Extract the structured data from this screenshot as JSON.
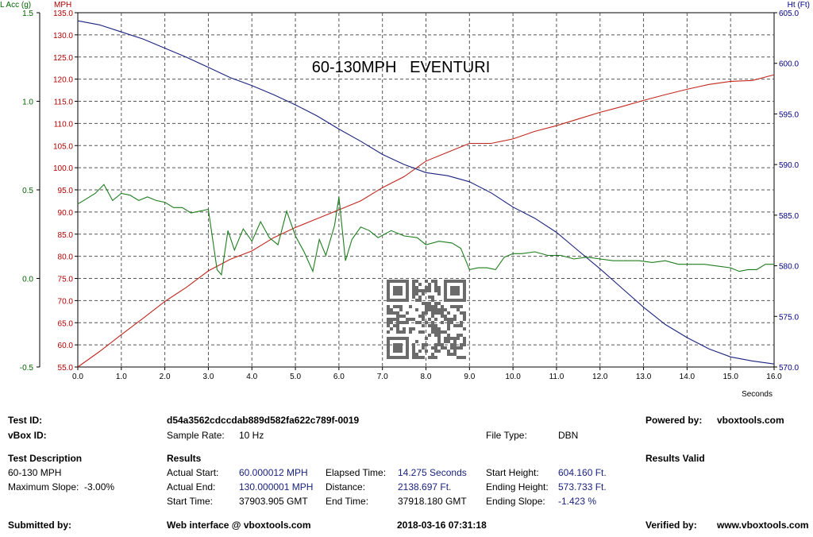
{
  "chart_data": {
    "type": "line",
    "title": "60-130MPH   EVENTURI",
    "xlabel": "Seconds",
    "xlim": [
      0,
      16
    ],
    "x_ticks": [
      "0.0",
      "1.0",
      "2.0",
      "3.0",
      "4.0",
      "5.0",
      "6.0",
      "7.0",
      "8.0",
      "9.0",
      "10.0",
      "11.0",
      "12.0",
      "13.0",
      "14.0",
      "15.0",
      "16.0"
    ],
    "grid": true,
    "axes": {
      "lacc": {
        "label": "L Acc (g)",
        "side": "left-outer",
        "range": [
          -0.5,
          1.5
        ],
        "color": "#006400",
        "ticks": [
          "1.5",
          "1.0",
          "0.5",
          "0.0",
          "-0.5"
        ]
      },
      "mph": {
        "label": "MPH",
        "side": "left-inner",
        "range": [
          55,
          135
        ],
        "color": "#b00000",
        "ticks": [
          "135.0",
          "130.0",
          "125.0",
          "120.0",
          "115.0",
          "110.0",
          "105.0",
          "100.0",
          "95.0",
          "90.0",
          "85.0",
          "80.0",
          "75.0",
          "70.0",
          "65.0",
          "60.0",
          "55.0"
        ]
      },
      "ht": {
        "label": "Ht (Ft)",
        "side": "right",
        "range": [
          570,
          605
        ],
        "color": "#000080",
        "ticks": [
          "605.0",
          "600.0",
          "595.0",
          "590.0",
          "585.0",
          "580.0",
          "575.0",
          "570.0"
        ]
      }
    },
    "series": [
      {
        "axis": "mph",
        "color": "#c0281e",
        "x": [
          0,
          0.5,
          1,
          1.5,
          2,
          2.5,
          3,
          3.5,
          4,
          4.5,
          5,
          5.5,
          6,
          6.5,
          7,
          7.5,
          8,
          8.5,
          9,
          9.5,
          10,
          10.5,
          11,
          11.5,
          12,
          12.5,
          13,
          13.5,
          14,
          14.5,
          15,
          15.5,
          16
        ],
        "values": [
          55,
          58.5,
          62.3,
          66,
          69.8,
          73,
          76.7,
          79.3,
          81.2,
          84.2,
          86.5,
          88.5,
          90.5,
          92.5,
          95.5,
          98,
          101.5,
          103.5,
          105.5,
          105.5,
          106.5,
          108.2,
          109.5,
          111,
          112.5,
          113.8,
          115.2,
          116.5,
          117.7,
          118.8,
          119.5,
          119.7,
          121
        ]
      },
      {
        "axis": "ht",
        "color": "#1a237e",
        "x": [
          0,
          0.5,
          1,
          1.5,
          2,
          2.5,
          3,
          3.5,
          4,
          4.5,
          5,
          5.5,
          6,
          6.5,
          7,
          7.5,
          8,
          8.5,
          9,
          9.5,
          10,
          10.5,
          11,
          11.5,
          12,
          12.5,
          13,
          13.5,
          14,
          14.5,
          15,
          15.5,
          16
        ],
        "values": [
          604.2,
          603.8,
          603.1,
          602.4,
          601.5,
          600.6,
          599.6,
          598.6,
          597.8,
          596.9,
          595.9,
          594.8,
          593.5,
          592.3,
          591,
          590,
          589.2,
          588.9,
          588.3,
          587.2,
          585.8,
          584.7,
          583.3,
          581.5,
          579.7,
          577.8,
          575.9,
          574.2,
          572.9,
          571.8,
          571,
          570.6,
          570.3
        ]
      },
      {
        "axis": "lacc",
        "color": "#1e7d1e",
        "x": [
          0,
          0.2,
          0.4,
          0.6,
          0.8,
          1,
          1.2,
          1.4,
          1.6,
          1.8,
          2,
          2.2,
          2.4,
          2.6,
          2.8,
          3,
          3.2,
          3.3,
          3.45,
          3.6,
          3.8,
          4,
          4.2,
          4.4,
          4.6,
          4.8,
          5,
          5.2,
          5.4,
          5.55,
          5.7,
          5.9,
          6,
          6.15,
          6.3,
          6.5,
          6.7,
          6.9,
          7.2,
          7.5,
          7.8,
          8,
          8.3,
          8.6,
          8.8,
          9,
          9.2,
          9.4,
          9.6,
          9.8,
          10,
          10.2,
          10.5,
          10.8,
          11.1,
          11.4,
          11.7,
          12,
          12.3,
          12.6,
          12.9,
          13.2,
          13.5,
          13.8,
          14.1,
          14.4,
          14.7,
          15,
          15.2,
          15.4,
          15.6,
          15.8,
          16
        ],
        "values": [
          0.42,
          0.45,
          0.48,
          0.53,
          0.44,
          0.48,
          0.47,
          0.44,
          0.46,
          0.44,
          0.43,
          0.4,
          0.4,
          0.37,
          0.38,
          0.39,
          0.05,
          0.02,
          0.27,
          0.16,
          0.28,
          0.21,
          0.32,
          0.23,
          0.19,
          0.38,
          0.24,
          0.15,
          0.04,
          0.22,
          0.13,
          0.3,
          0.46,
          0.1,
          0.22,
          0.29,
          0.27,
          0.23,
          0.27,
          0.24,
          0.23,
          0.19,
          0.21,
          0.2,
          0.17,
          0.05,
          0.06,
          0.06,
          0.05,
          0.12,
          0.14,
          0.14,
          0.15,
          0.13,
          0.13,
          0.11,
          0.12,
          0.11,
          0.1,
          0.1,
          0.1,
          0.09,
          0.1,
          0.08,
          0.08,
          0.08,
          0.07,
          0.06,
          0.04,
          0.05,
          0.05,
          0.08,
          0.08
        ]
      }
    ]
  },
  "footer": {
    "test_id_label": "Test ID:",
    "test_id_value": "d54a3562cdccdab889d582fa622c789f-0019",
    "powered_by_label": "Powered by:",
    "powered_by_value": "vboxtools.com",
    "vbox_id_label": "vBox ID:",
    "sample_rate_label": "Sample Rate:",
    "sample_rate_value": "10 Hz",
    "file_type_label": "File Type:",
    "file_type_value": "DBN",
    "test_desc_label": "Test Description",
    "test_desc_line1": "60-130 MPH",
    "test_desc_line2": "Maximum Slope:  -3.00%",
    "results_label": "Results",
    "results_valid": "Results Valid",
    "actual_start_label": "Actual Start:",
    "actual_start_value": "60.000012 MPH",
    "actual_end_label": "Actual End:",
    "actual_end_value": "130.000001 MPH",
    "start_time_label": "Start Time:",
    "start_time_value": "37903.905 GMT",
    "elapsed_label": "Elapsed Time:",
    "elapsed_value": "14.275 Seconds",
    "distance_label": "Distance:",
    "distance_value": "2138.697 Ft.",
    "end_time_label": "End Time:",
    "end_time_value": "37918.180 GMT",
    "start_height_label": "Start Height:",
    "start_height_value": "604.160 Ft.",
    "ending_height_label": "Ending Height:",
    "ending_height_value": "573.733 Ft.",
    "ending_slope_label": "Ending Slope:",
    "ending_slope_value": "-1.423 %",
    "submitted_label": "Submitted by:",
    "web_interface": "Web interface @ vboxtools.com",
    "timestamp": "2018-03-16 07:31:18",
    "verified_label": "Verified by:",
    "verified_value": "www.vboxtools.com"
  }
}
